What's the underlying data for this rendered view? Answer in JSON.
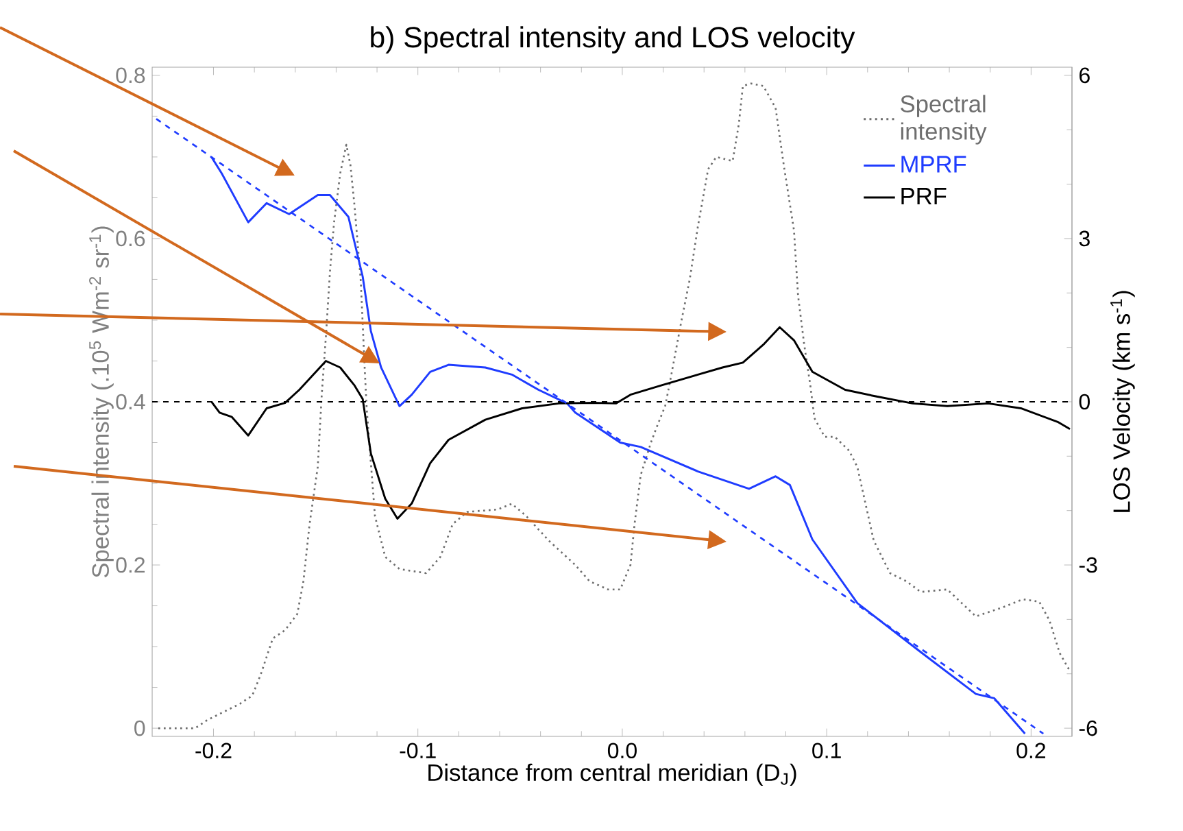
{
  "chart_data": {
    "type": "line",
    "title": "b) Spectral intensity and LOS velocity",
    "xlabel": "Distance from central meridian (D$_{J}$)",
    "ylabel": "Spectral intensity (.10$^{5}$ Wm$^{-2}$ sr$^{-1}$)",
    "y2label": "LOS Velocity (km s$^{-1}$)",
    "xlim": [
      -0.23,
      0.22
    ],
    "ylim": [
      -0.01,
      0.81
    ],
    "y2lim": [
      -6.15,
      6.15
    ],
    "xticks": [
      -0.2,
      -0.1,
      {
        "value": 0,
        "label": "0.0"
      },
      0.1,
      0.2
    ],
    "yticks": [
      0,
      0.2,
      0.4,
      0.6,
      0.8
    ],
    "y2ticks": [
      -6,
      -3,
      0,
      3,
      6
    ],
    "legend": "top right",
    "marker": "none",
    "ref_lines": [
      {
        "axis": "y2",
        "value": 0,
        "color": "#000000",
        "line_style": "dashed"
      }
    ],
    "series": [
      {
        "name": "Spectral intensity",
        "color": "#6e6e6e",
        "line_style": "dotted",
        "x": [
          -0.227,
          -0.209,
          -0.203,
          -0.195,
          -0.187,
          -0.181,
          -0.177,
          -0.171,
          -0.165,
          -0.159,
          -0.156,
          -0.153,
          -0.149,
          -0.147,
          -0.145,
          -0.143,
          -0.141,
          -0.138,
          -0.135,
          -0.133,
          -0.131,
          -0.128,
          -0.126,
          -0.125,
          -0.121,
          -0.116,
          -0.109,
          -0.096,
          -0.089,
          -0.083,
          -0.076,
          -0.061,
          -0.054,
          -0.047,
          -0.036,
          -0.023,
          -0.016,
          -0.007,
          -0.001,
          0.004,
          0.006,
          0.009,
          0.014,
          0.017,
          0.021,
          0.023,
          0.029,
          0.033,
          0.037,
          0.042,
          0.046,
          0.054,
          0.057,
          0.059,
          0.063,
          0.069,
          0.075,
          0.079,
          0.084,
          0.086,
          0.089,
          0.092,
          0.094,
          0.099,
          0.104,
          0.111,
          0.115,
          0.119,
          0.123,
          0.131,
          0.139,
          0.146,
          0.159,
          0.173,
          0.186,
          0.196,
          0.204,
          0.209,
          0.214,
          0.219
        ],
        "values": [
          0.0,
          0.0,
          0.01,
          0.02,
          0.03,
          0.04,
          0.065,
          0.11,
          0.12,
          0.14,
          0.18,
          0.25,
          0.32,
          0.41,
          0.48,
          0.56,
          0.62,
          0.68,
          0.715,
          0.69,
          0.64,
          0.55,
          0.44,
          0.39,
          0.26,
          0.21,
          0.195,
          0.19,
          0.21,
          0.25,
          0.265,
          0.268,
          0.275,
          0.26,
          0.23,
          0.2,
          0.18,
          0.17,
          0.17,
          0.2,
          0.25,
          0.31,
          0.35,
          0.37,
          0.395,
          0.42,
          0.5,
          0.55,
          0.615,
          0.685,
          0.7,
          0.695,
          0.74,
          0.787,
          0.79,
          0.787,
          0.76,
          0.69,
          0.61,
          0.53,
          0.47,
          0.42,
          0.38,
          0.357,
          0.357,
          0.34,
          0.32,
          0.275,
          0.23,
          0.19,
          0.18,
          0.167,
          0.17,
          0.137,
          0.148,
          0.158,
          0.155,
          0.132,
          0.092,
          0.07
        ]
      },
      {
        "name": "MPRF",
        "color": "#1f3cff",
        "axis": "y2",
        "x": [
          -0.201,
          -0.196,
          -0.183,
          -0.174,
          -0.163,
          -0.149,
          -0.143,
          -0.134,
          -0.127,
          -0.123,
          -0.118,
          -0.109,
          -0.103,
          -0.094,
          -0.085,
          -0.067,
          -0.054,
          -0.041,
          -0.027,
          -0.023,
          -0.001,
          0.009,
          0.037,
          0.062,
          0.075,
          0.082,
          0.093,
          0.115,
          0.146,
          0.173,
          0.182,
          0.197
        ],
        "values": [
          4.5,
          4.2,
          3.3,
          3.65,
          3.45,
          3.8,
          3.8,
          3.4,
          2.3,
          1.3,
          0.63,
          -0.08,
          0.13,
          0.55,
          0.68,
          0.63,
          0.5,
          0.22,
          -0.03,
          -0.2,
          -0.75,
          -0.83,
          -1.28,
          -1.6,
          -1.37,
          -1.53,
          -2.53,
          -3.7,
          -4.6,
          -5.37,
          -5.45,
          -6.1
        ]
      },
      {
        "name": "PRF",
        "color": "#000000",
        "axis": "y2",
        "x": [
          -0.201,
          -0.197,
          -0.191,
          -0.183,
          -0.174,
          -0.165,
          -0.158,
          -0.145,
          -0.138,
          -0.131,
          -0.127,
          -0.123,
          -0.116,
          -0.11,
          -0.103,
          -0.094,
          -0.085,
          -0.067,
          -0.049,
          -0.031,
          -0.014,
          -0.003,
          0.004,
          0.019,
          0.037,
          0.049,
          0.059,
          0.069,
          0.077,
          0.084,
          0.093,
          0.109,
          0.124,
          0.142,
          0.159,
          0.179,
          0.195,
          0.213,
          0.219
        ],
        "values": [
          0,
          -0.2,
          -0.28,
          -0.62,
          -0.12,
          -0.02,
          0.22,
          0.75,
          0.63,
          0.3,
          0.05,
          -0.95,
          -1.78,
          -2.15,
          -1.87,
          -1.13,
          -0.7,
          -0.33,
          -0.12,
          -0.03,
          -0.02,
          -0.03,
          0.13,
          0.3,
          0.5,
          0.63,
          0.72,
          1.05,
          1.37,
          1.13,
          0.55,
          0.22,
          0.1,
          -0.03,
          -0.08,
          -0.03,
          -0.12,
          -0.37,
          -0.5
        ]
      },
      {
        "color": "#1f3cff",
        "axis": "y2",
        "line_style": "dashed",
        "x": [
          -0.228,
          0.206
        ],
        "values": [
          5.2,
          -6.1
        ]
      }
    ]
  }
}
